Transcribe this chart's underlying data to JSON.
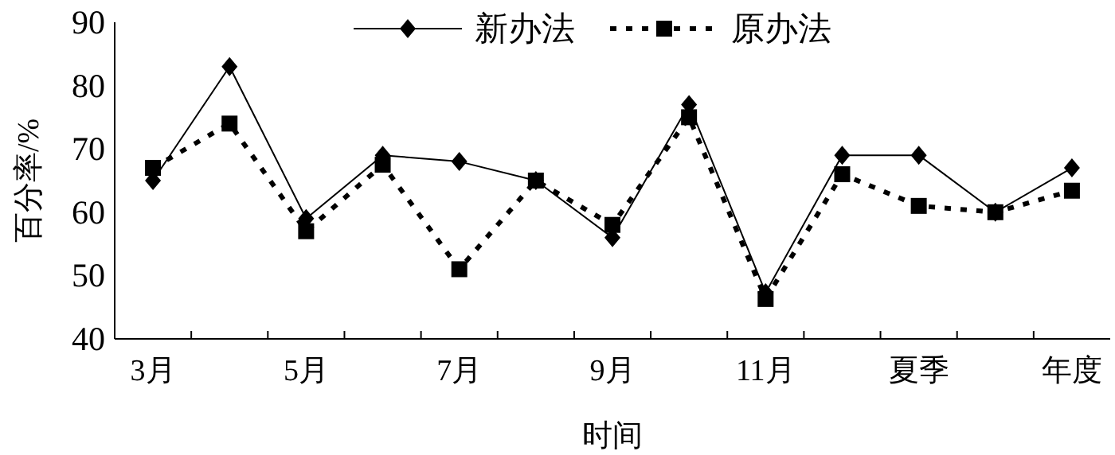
{
  "chart_data": {
    "type": "line",
    "xlabel": "时间",
    "ylabel": "百分率/%",
    "categories": [
      "3月",
      null,
      "5月",
      null,
      "7月",
      null,
      "9月",
      null,
      "11月",
      null,
      "夏季",
      null,
      "年度"
    ],
    "series": [
      {
        "name": "新办法",
        "color": "#000000",
        "marker": "diamond",
        "line_style": "solid",
        "values": [
          65,
          83,
          59,
          69,
          68,
          65,
          56,
          77,
          47.3,
          69,
          69,
          60,
          67
        ]
      },
      {
        "name": "原办法",
        "color": "#000000",
        "marker": "square",
        "line_style": "dotted",
        "values": [
          67,
          74,
          57,
          67.5,
          51,
          65,
          58,
          75,
          46.3,
          66,
          61,
          60,
          63.4
        ]
      }
    ],
    "ylim": [
      40,
      90
    ],
    "yticks": [
      40,
      50,
      60,
      70,
      80,
      90
    ],
    "grid": false,
    "legend": "top"
  }
}
